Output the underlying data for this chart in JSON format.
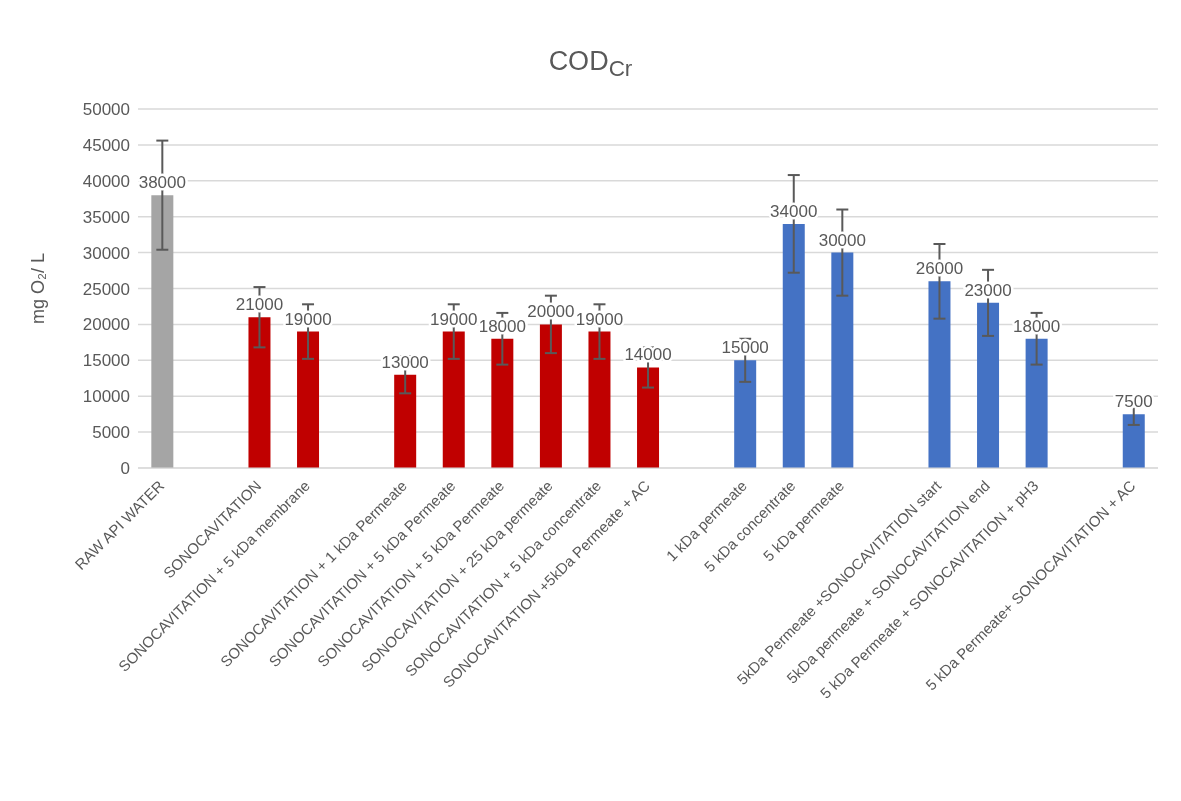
{
  "chart_data": {
    "type": "bar",
    "title": "COD$_{Cr}$",
    "ylabel": "mg O₂/ L",
    "categories": [
      "RAW API WATER",
      null,
      "SONOCAVITATION",
      "SONOCAVITATION + 5 kDa membrane",
      null,
      "SONOCAVITATION + 1 kDa Permeate",
      "SONOCAVITATION + 5 kDa Permeate",
      "SONOCAVITATION + 5 kDa Permeate",
      "SONOCAVITATION + 25 kDa permeate",
      "SONOCAVITATION + 5 kDa concentrate",
      "SONOCAVITATION +5kDa Permeate + AC",
      null,
      "1 kDa permeate",
      "5 kDa concentrate",
      "5 kDa permeate",
      null,
      "5kDa Permeate +SONOCAVITATION start",
      "5kDa permeate + SONOCAVITATION end",
      "5 kDa Permeate + SONOCAVITATION + pH3",
      null,
      "5 kDa Permeate+ SONOCAVITATION + AC"
    ],
    "values": [
      38000,
      null,
      21000,
      19000,
      null,
      13000,
      19000,
      18000,
      20000,
      19000,
      14000,
      null,
      15000,
      34000,
      30000,
      null,
      26000,
      23000,
      18000,
      null,
      7500
    ],
    "errors": [
      7600,
      null,
      4200,
      3800,
      null,
      2600,
      3800,
      3600,
      4000,
      3800,
      2800,
      null,
      3000,
      6800,
      6000,
      null,
      5200,
      4600,
      3600,
      null,
      1500
    ],
    "colors": [
      "#a5a5a5",
      "#a5a5a5",
      "#c00000",
      "#c00000",
      "#c00000",
      "#c00000",
      "#c00000",
      "#c00000",
      "#c00000",
      "#c00000",
      "#c00000",
      "#4472c4",
      "#4472c4",
      "#4472c4",
      "#4472c4",
      "#4472c4",
      "#4472c4",
      "#4472c4",
      "#4472c4",
      "#4472c4",
      "#4472c4"
    ],
    "ylim": [
      0,
      50000
    ],
    "yticks": [
      0,
      5000,
      10000,
      15000,
      20000,
      25000,
      30000,
      35000,
      40000,
      45000,
      50000
    ],
    "grid": "y",
    "legend": false,
    "data_labels": true
  }
}
